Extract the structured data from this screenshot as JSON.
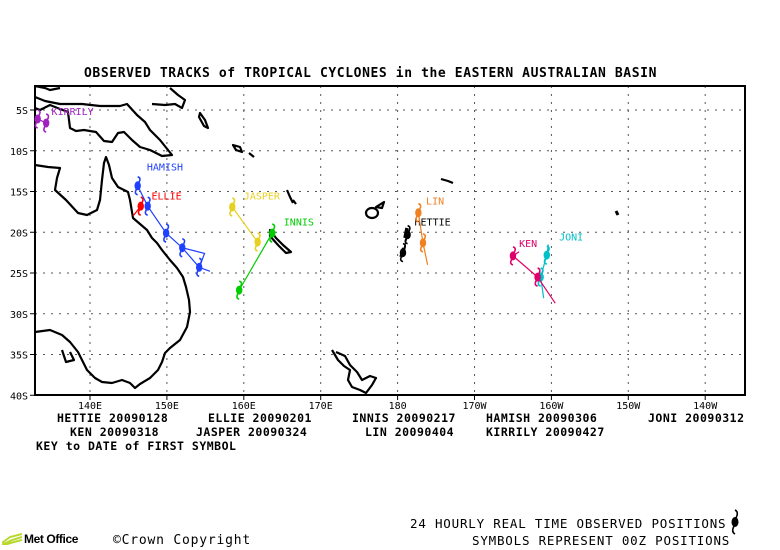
{
  "chart_data": {
    "type": "map-tracks",
    "title": "OBSERVED TRACKS of TROPICAL CYCLONES in the EASTERN AUSTRALIAN BASIN",
    "lon_range_deg_east": [
      133,
      225
    ],
    "lat_range": [
      -2,
      -40
    ],
    "grid": true,
    "lat_ticks": [
      {
        "v": -5,
        "label": "5S"
      },
      {
        "v": -10,
        "label": "10S"
      },
      {
        "v": -15,
        "label": "15S"
      },
      {
        "v": -20,
        "label": "20S"
      },
      {
        "v": -25,
        "label": "25S"
      },
      {
        "v": -30,
        "label": "30S"
      },
      {
        "v": -35,
        "label": "35S"
      },
      {
        "v": -40,
        "label": "40S"
      }
    ],
    "lon_ticks": [
      {
        "v": 140,
        "label": "140E"
      },
      {
        "v": 150,
        "label": "150E"
      },
      {
        "v": 160,
        "label": "160E"
      },
      {
        "v": 170,
        "label": "170E"
      },
      {
        "v": 180,
        "label": "180"
      },
      {
        "v": 190,
        "label": "170W"
      },
      {
        "v": 200,
        "label": "160W"
      },
      {
        "v": 210,
        "label": "150W"
      },
      {
        "v": 220,
        "label": "140W"
      }
    ],
    "tracks": [
      {
        "name": "HETTIE",
        "color": "#000000",
        "label_at": [
          182.2,
          -19.2
        ],
        "points": [
          [
            181.3,
            -20.3
          ],
          [
            180.7,
            -22.5
          ]
        ],
        "line_end": [
          180.6,
          -23.0
        ]
      },
      {
        "name": "ELLIE",
        "color": "#ff0000",
        "label_at": [
          148.0,
          -16.0
        ],
        "points": [
          [
            146.6,
            -16.8
          ]
        ],
        "line_start": [
          145.6,
          -18.0
        ]
      },
      {
        "name": "INNIS",
        "color": "#00cc00",
        "label_at": [
          165.2,
          -19.2
        ],
        "points": [
          [
            163.7,
            -20.1
          ],
          [
            159.4,
            -27.1
          ]
        ]
      },
      {
        "name": "HAMISH",
        "color": "#2040ff",
        "label_at": [
          147.4,
          -12.4
        ],
        "points": [
          [
            146.2,
            -14.3
          ],
          [
            147.5,
            -16.8
          ],
          [
            149.9,
            -20.1
          ],
          [
            152.0,
            -21.9
          ],
          [
            154.2,
            -24.3
          ]
        ],
        "extra_path": [
          [
            152.0,
            -21.9
          ],
          [
            154.9,
            -22.6
          ],
          [
            154.2,
            -24.3
          ],
          [
            155.6,
            -24.8
          ]
        ]
      },
      {
        "name": "JONI",
        "color": "#00c0c8",
        "label_at": [
          201.0,
          -21.0
        ],
        "points": [
          [
            199.4,
            -22.8
          ],
          [
            198.6,
            -25.5
          ]
        ],
        "line_start": [
          199.6,
          -21.5
        ],
        "line_end": [
          199.0,
          -28.1
        ]
      },
      {
        "name": "KEN",
        "color": "#e0006c",
        "label_at": [
          195.8,
          -21.8
        ],
        "points": [
          [
            195.0,
            -22.9
          ],
          [
            198.2,
            -25.5
          ]
        ],
        "line_start": [
          195.8,
          -22.4
        ],
        "line_end": [
          200.5,
          -28.7
        ]
      },
      {
        "name": "JASPER",
        "color": "#e8d020",
        "label_at": [
          160.0,
          -16.0
        ],
        "points": [
          [
            158.5,
            -16.9
          ],
          [
            161.8,
            -21.2
          ]
        ]
      },
      {
        "name": "LIN",
        "color": "#f08020",
        "label_at": [
          183.7,
          -16.6
        ],
        "points": [
          [
            182.7,
            -17.6
          ],
          [
            183.3,
            -21.3
          ]
        ],
        "line_end": [
          183.9,
          -24.0
        ]
      },
      {
        "name": "KIRRILY",
        "color": "#a020c0",
        "label_at": [
          135.0,
          -5.6
        ],
        "points": [
          [
            133.2,
            -6.1
          ],
          [
            134.3,
            -6.6
          ]
        ]
      }
    ]
  },
  "key": {
    "rows": [
      [
        {
          "name": "HETTIE",
          "date": "20090128"
        },
        {
          "name": "ELLIE",
          "date": "20090201"
        },
        {
          "name": "INNIS",
          "date": "20090217"
        },
        {
          "name": "HAMISH",
          "date": "20090306"
        },
        {
          "name": "JONI",
          "date": "20090312"
        }
      ],
      [
        {
          "name": "KEN",
          "date": "20090318"
        },
        {
          "name": "JASPER",
          "date": "20090324"
        },
        {
          "name": "LIN",
          "date": "20090404"
        },
        {
          "name": "KIRRILY",
          "date": "20090427"
        }
      ]
    ],
    "caption": "KEY to DATE of FIRST SYMBOL"
  },
  "footer": {
    "logo": "Met Office",
    "copyright": "Crown Copyright",
    "copyright_symbol": "©",
    "legend_line1": "24 HOURLY REAL TIME OBSERVED POSITIONS",
    "legend_line2": "SYMBOLS REPRESENT 00Z POSITIONS"
  }
}
